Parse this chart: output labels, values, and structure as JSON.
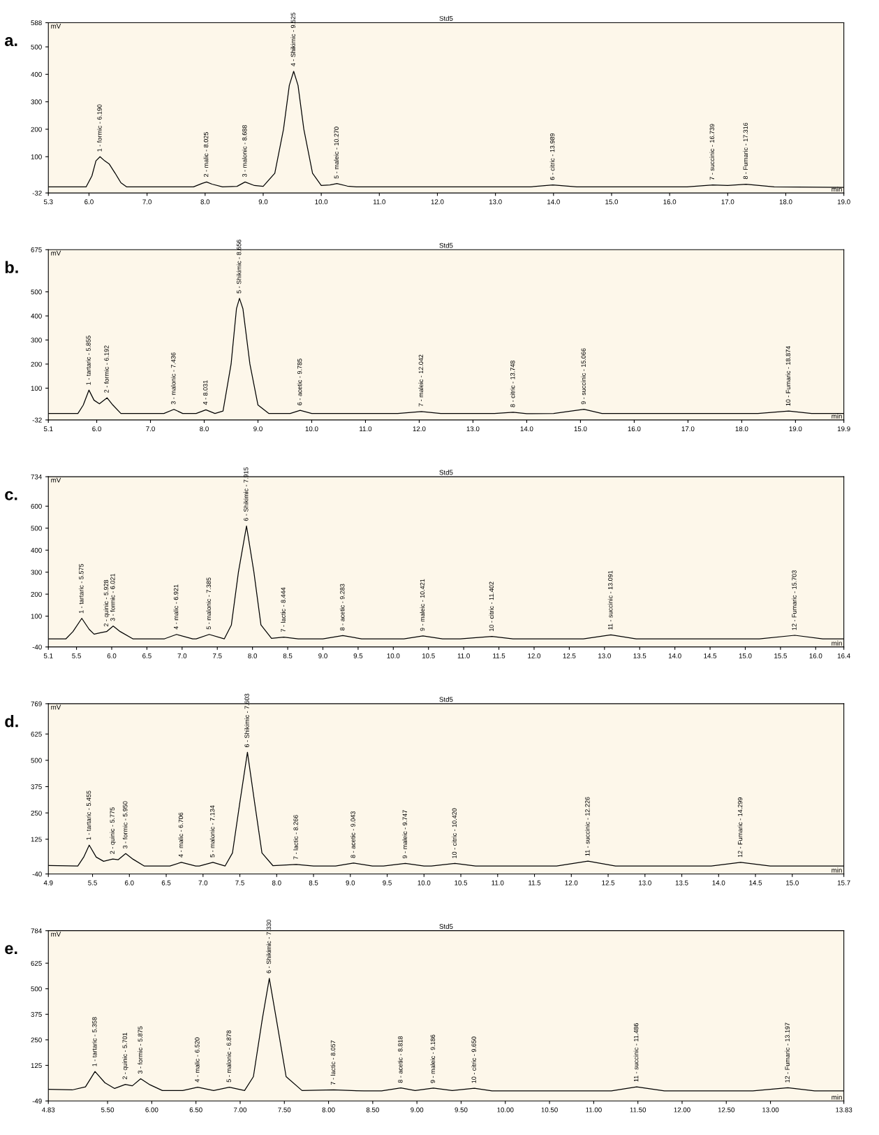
{
  "chart_data": [
    {
      "type": "line",
      "title": "Std5",
      "xlabel": "min",
      "ylabel": "mV",
      "xlim": [
        5.3,
        19.0
      ],
      "ylim": [
        -32,
        588
      ],
      "xticks": [
        5.3,
        {
          "value": 6,
          "label": "6.0"
        },
        {
          "value": 7,
          "label": "7.0"
        },
        {
          "value": 8,
          "label": "8.0"
        },
        {
          "value": 9,
          "label": "9.0"
        },
        {
          "value": 10,
          "label": "10.0"
        },
        {
          "value": 11,
          "label": "11.0"
        },
        {
          "value": 12,
          "label": "12.0"
        },
        {
          "value": 13,
          "label": "13.0"
        },
        {
          "value": 14,
          "label": "14.0"
        },
        {
          "value": 15,
          "label": "15.0"
        },
        {
          "value": 16,
          "label": "16.0"
        },
        {
          "value": 17,
          "label": "17.0"
        },
        {
          "value": 18,
          "label": "18.0"
        },
        {
          "value": 19,
          "label": "19.0"
        }
      ],
      "yticks": [
        -32,
        100,
        200,
        300,
        400,
        500,
        588
      ],
      "grid": false,
      "legend": false,
      "marker": "none",
      "line_style": "solid",
      "x": [
        5.3,
        5.95,
        6.05,
        6.12,
        6.19,
        6.27,
        6.35,
        6.45,
        6.55,
        6.65,
        7.8,
        7.95,
        8.025,
        8.12,
        8.3,
        8.55,
        8.688,
        8.85,
        9.0,
        9.2,
        9.35,
        9.45,
        9.525,
        9.6,
        9.7,
        9.85,
        10.0,
        10.15,
        10.27,
        10.45,
        10.6,
        13.6,
        13.989,
        14.4,
        16.3,
        16.739,
        17.0,
        17.316,
        17.8,
        19.0
      ],
      "series": [
        {
          "color": "#000000",
          "values": [
            -10,
            -10,
            30,
            85,
            100,
            85,
            73,
            40,
            5,
            -10,
            -10,
            3,
            8,
            0,
            -10,
            -8,
            8,
            -5,
            -8,
            40,
            200,
            360,
            411,
            360,
            200,
            40,
            -5,
            -3,
            2,
            -7,
            -10,
            -10,
            -3,
            -10,
            -10,
            -3,
            -5,
            0,
            -10,
            -12
          ]
        }
      ],
      "annotations": [
        "a.",
        {
          "text": "1 - formic - 6.190",
          "x": 6.19,
          "y": 100
        },
        {
          "text": "2 - malic - 8.025",
          "x": 8.025,
          "y": 8
        },
        {
          "text": "3 - malonic - 8.688",
          "x": 8.688,
          "y": 8
        },
        {
          "text": "4 - Shikimic - 9.525",
          "x": 9.525,
          "y": 411
        },
        {
          "text": "5 - maleic - 10.270",
          "x": 10.27,
          "y": 2
        },
        {
          "text": "6 - citric - 13.989",
          "x": 13.989,
          "y": -3
        },
        {
          "text": "7 - succinic - 16.739",
          "x": 16.739,
          "y": -3
        },
        {
          "text": "8 - Fumaric - 17.316",
          "x": 17.316,
          "y": 0
        }
      ]
    },
    {
      "type": "line",
      "title": "Std5",
      "xlabel": "min",
      "ylabel": "mV",
      "xlim": [
        5.1,
        19.9
      ],
      "ylim": [
        -32,
        675
      ],
      "xticks": [
        5.1,
        {
          "value": 6,
          "label": "6.0"
        },
        {
          "value": 7,
          "label": "7.0"
        },
        {
          "value": 8,
          "label": "8.0"
        },
        {
          "value": 9,
          "label": "9.0"
        },
        {
          "value": 10,
          "label": "10.0"
        },
        {
          "value": 11,
          "label": "11.0"
        },
        {
          "value": 12,
          "label": "12.0"
        },
        {
          "value": 13,
          "label": "13.0"
        },
        {
          "value": 14,
          "label": "14.0"
        },
        {
          "value": 15,
          "label": "15.0"
        },
        {
          "value": 16,
          "label": "16.0"
        },
        {
          "value": 17,
          "label": "17.0"
        },
        {
          "value": 18,
          "label": "18.0"
        },
        {
          "value": 19,
          "label": "19.0"
        },
        19.9
      ],
      "yticks": [
        -32,
        100,
        200,
        300,
        400,
        500,
        675
      ],
      "grid": false,
      "legend": false,
      "marker": "none",
      "line_style": "solid",
      "x": [
        5.1,
        5.65,
        5.75,
        5.855,
        5.95,
        6.05,
        6.192,
        6.3,
        6.45,
        7.25,
        7.436,
        7.6,
        7.85,
        8.031,
        8.2,
        8.35,
        8.5,
        8.6,
        8.656,
        8.72,
        8.85,
        9.0,
        9.2,
        9.6,
        9.785,
        10.0,
        11.6,
        12.042,
        12.4,
        13.4,
        13.748,
        14.0,
        14.5,
        15.066,
        15.4,
        18.3,
        18.874,
        19.3,
        19.9
      ],
      "series": [
        {
          "color": "#000000",
          "values": [
            -5,
            -5,
            30,
            92,
            50,
            35,
            60,
            30,
            -5,
            -5,
            12,
            -5,
            -5,
            10,
            -5,
            5,
            200,
            430,
            473,
            430,
            200,
            30,
            -5,
            -5,
            8,
            -5,
            -5,
            3,
            -5,
            -5,
            0,
            -6,
            -5,
            12,
            -5,
            -5,
            5,
            -5,
            -5
          ]
        }
      ],
      "annotations": [
        "b.",
        {
          "text": "1 - tartaric - 5.855",
          "x": 5.855,
          "y": 92
        },
        {
          "text": "2 - formic - 6.192",
          "x": 6.192,
          "y": 60
        },
        {
          "text": "3 - malonic - 7.436",
          "x": 7.436,
          "y": 12
        },
        {
          "text": "4 - 8.031",
          "x": 8.031,
          "y": 10
        },
        {
          "text": "5 - Shikimic - 8.656",
          "x": 8.656,
          "y": 473
        },
        {
          "text": "6 - acetic - 9.785",
          "x": 9.785,
          "y": 8
        },
        {
          "text": "7 - maleic - 12.042",
          "x": 12.042,
          "y": 3
        },
        {
          "text": "8 - citric - 13.748",
          "x": 13.748,
          "y": 0
        },
        {
          "text": "9 - succinic - 15.066",
          "x": 15.066,
          "y": 12
        },
        {
          "text": "10 - Fumaric - 18.874",
          "x": 18.874,
          "y": 5
        }
      ]
    },
    {
      "type": "line",
      "title": "Std5",
      "xlabel": "min",
      "ylabel": "mV",
      "xlim": [
        5.1,
        16.4
      ],
      "ylim": [
        -40,
        734
      ],
      "xticks": [
        5.1,
        5.5,
        {
          "value": 6,
          "label": "6.0"
        },
        6.5,
        {
          "value": 7,
          "label": "7.0"
        },
        7.5,
        {
          "value": 8,
          "label": "8.0"
        },
        8.5,
        {
          "value": 9,
          "label": "9.0"
        },
        9.5,
        {
          "value": 10,
          "label": "10.0"
        },
        10.5,
        {
          "value": 11,
          "label": "11.0"
        },
        11.5,
        {
          "value": 12,
          "label": "12.0"
        },
        12.5,
        {
          "value": 13,
          "label": "13.0"
        },
        13.5,
        {
          "value": 14,
          "label": "14.0"
        },
        14.5,
        {
          "value": 15,
          "label": "15.0"
        },
        15.5,
        {
          "value": 16,
          "label": "16.0"
        },
        16.4
      ],
      "yticks": [
        -40,
        100,
        200,
        300,
        400,
        500,
        600,
        734
      ],
      "grid": false,
      "legend": false,
      "marker": "none",
      "line_style": "solid",
      "x": [
        5.1,
        5.35,
        5.45,
        5.575,
        5.68,
        5.75,
        5.85,
        5.928,
        6.021,
        6.12,
        6.3,
        6.75,
        6.921,
        7.15,
        7.2,
        7.385,
        7.6,
        7.7,
        7.8,
        7.915,
        8.02,
        8.12,
        8.27,
        8.444,
        8.65,
        9.0,
        9.283,
        9.55,
        10.15,
        10.421,
        10.7,
        10.95,
        11.402,
        11.7,
        12.7,
        13.091,
        13.45,
        15.2,
        15.703,
        16.1,
        16.4
      ],
      "series": [
        {
          "color": "#000000",
          "values": [
            -3,
            -3,
            30,
            90,
            40,
            18,
            25,
            30,
            55,
            30,
            -3,
            -3,
            17,
            -3,
            -3,
            17,
            -3,
            60,
            300,
            510,
            300,
            60,
            -1,
            5,
            -3,
            -3,
            12,
            -3,
            -3,
            10,
            -3,
            -3,
            8,
            -3,
            -3,
            15,
            -3,
            -3,
            13,
            -3,
            -3
          ]
        }
      ],
      "annotations": [
        "c.",
        {
          "text": "1 - tartaric - 5.575",
          "x": 5.575,
          "y": 90
        },
        {
          "text": "2 - quinic - 5.928",
          "x": 5.928,
          "y": 30
        },
        {
          "text": "3 - formic - 6.021",
          "x": 6.021,
          "y": 55
        },
        {
          "text": "4 - malic - 6.921",
          "x": 6.921,
          "y": 17
        },
        {
          "text": "5 - malonic - 7.385",
          "x": 7.385,
          "y": 17
        },
        {
          "text": "6 - Shikimic - 7.915",
          "x": 7.915,
          "y": 510
        },
        {
          "text": "7 - lactic - 8.444",
          "x": 8.444,
          "y": 5
        },
        {
          "text": "8 - acetic - 9.283",
          "x": 9.283,
          "y": 12
        },
        {
          "text": "9 - maleic - 10.421",
          "x": 10.421,
          "y": 10
        },
        {
          "text": "10 - citric - 11.402",
          "x": 11.402,
          "y": 8
        },
        {
          "text": "11 - succinic - 13.091",
          "x": 13.091,
          "y": 15
        },
        {
          "text": "12 - Fumaric - 15.703",
          "x": 15.703,
          "y": 13
        }
      ]
    },
    {
      "type": "line",
      "title": "Std5",
      "xlabel": "min",
      "ylabel": "mV",
      "xlim": [
        4.9,
        15.7
      ],
      "ylim": [
        -40,
        769
      ],
      "xticks": [
        4.9,
        5.5,
        {
          "value": 6,
          "label": "6.0"
        },
        6.5,
        {
          "value": 7,
          "label": "7.0"
        },
        7.5,
        {
          "value": 8,
          "label": "8.0"
        },
        8.5,
        {
          "value": 9,
          "label": "9.0"
        },
        9.5,
        {
          "value": 10,
          "label": "10.0"
        },
        10.5,
        {
          "value": 11,
          "label": "11.0"
        },
        11.5,
        {
          "value": 12,
          "label": "12.0"
        },
        12.5,
        {
          "value": 13,
          "label": "13.0"
        },
        13.5,
        {
          "value": 14,
          "label": "14.0"
        },
        14.5,
        {
          "value": 15,
          "label": "15.0"
        },
        15.7
      ],
      "yticks": [
        -40,
        125,
        250,
        375,
        500,
        625,
        769
      ],
      "grid": false,
      "legend": false,
      "marker": "none",
      "line_style": "solid",
      "x": [
        4.9,
        5.3,
        5.38,
        5.455,
        5.55,
        5.65,
        5.775,
        5.85,
        5.95,
        6.05,
        6.2,
        6.55,
        6.706,
        6.9,
        6.95,
        7.134,
        7.3,
        7.4,
        7.5,
        7.603,
        7.7,
        7.8,
        7.95,
        8.266,
        8.5,
        8.8,
        9.043,
        9.3,
        9.45,
        9.747,
        10.0,
        10.1,
        10.42,
        10.7,
        11.8,
        12.226,
        12.6,
        13.9,
        14.299,
        14.7,
        15.7
      ],
      "series": [
        {
          "color": "#000000",
          "values": [
            0,
            -2,
            40,
            97,
            40,
            20,
            31,
            28,
            57,
            30,
            -2,
            -2,
            15,
            -2,
            -2,
            15,
            -2,
            60,
            300,
            538,
            300,
            60,
            -1,
            5,
            -2,
            -2,
            12,
            -2,
            -2,
            10,
            -2,
            -2,
            10,
            -2,
            -2,
            21,
            -2,
            -2,
            15,
            -2,
            -2
          ]
        }
      ],
      "annotations": [
        "d.",
        {
          "text": "1 - tartaric - 5.455",
          "x": 5.455,
          "y": 97
        },
        {
          "text": "2 - quinic - 5.775",
          "x": 5.775,
          "y": 31
        },
        {
          "text": "3 - formic - 5.950",
          "x": 5.95,
          "y": 57
        },
        {
          "text": "4 - malic - 6.706",
          "x": 6.706,
          "y": 15
        },
        {
          "text": "5 - malonic - 7.134",
          "x": 7.134,
          "y": 15
        },
        {
          "text": "6 - Shikimic - 7.603",
          "x": 7.603,
          "y": 538
        },
        {
          "text": "7 - lactic - 8.266",
          "x": 8.266,
          "y": 5
        },
        {
          "text": "8 - acetic - 9.043",
          "x": 9.043,
          "y": 12
        },
        {
          "text": "9 - maleic - 9.747",
          "x": 9.747,
          "y": 10
        },
        {
          "text": "10 - citric - 10.420",
          "x": 10.42,
          "y": 10
        },
        {
          "text": "11 - succinic - 12.226",
          "x": 12.226,
          "y": 21
        },
        {
          "text": "12 - Fumaric - 14.299",
          "x": 14.299,
          "y": 15
        }
      ]
    },
    {
      "type": "line",
      "title": "Std5",
      "xlabel": "min",
      "ylabel": "mV",
      "xlim": [
        4.83,
        13.83
      ],
      "ylim": [
        -49,
        784
      ],
      "xticks": [
        4.83,
        {
          "value": 5.5,
          "label": "5.50"
        },
        {
          "value": 6,
          "label": "6.00"
        },
        {
          "value": 6.5,
          "label": "6.50"
        },
        {
          "value": 7,
          "label": "7.00"
        },
        {
          "value": 7.5,
          "label": "7.50"
        },
        {
          "value": 8,
          "label": "8.00"
        },
        {
          "value": 8.5,
          "label": "8.50"
        },
        {
          "value": 9,
          "label": "9.00"
        },
        {
          "value": 9.5,
          "label": "9.50"
        },
        {
          "value": 10,
          "label": "10.00"
        },
        {
          "value": 10.5,
          "label": "10.50"
        },
        {
          "value": 11,
          "label": "11.00"
        },
        {
          "value": 11.5,
          "label": "11.50"
        },
        {
          "value": 12,
          "label": "12.00"
        },
        {
          "value": 12.5,
          "label": "12.50"
        },
        {
          "value": 13,
          "label": "13.00"
        },
        13.83
      ],
      "yticks": [
        -49,
        125,
        250,
        375,
        500,
        625,
        784
      ],
      "grid": false,
      "legend": false,
      "marker": "none",
      "line_style": "solid",
      "x": [
        4.83,
        5.1,
        5.25,
        5.358,
        5.47,
        5.58,
        5.701,
        5.78,
        5.875,
        5.98,
        6.12,
        6.35,
        6.52,
        6.7,
        6.878,
        7.05,
        7.15,
        7.25,
        7.33,
        7.41,
        7.52,
        7.7,
        8.057,
        8.4,
        8.6,
        8.818,
        8.98,
        9.186,
        9.4,
        9.65,
        9.85,
        11.2,
        11.486,
        11.8,
        12.8,
        13.197,
        13.5,
        13.83
      ],
      "series": [
        {
          "color": "#000000",
          "values": [
            8,
            5,
            20,
            95,
            40,
            12,
            32,
            25,
            60,
            30,
            2,
            2,
            18,
            2,
            18,
            2,
            70,
            350,
            551,
            350,
            70,
            2,
            5,
            0,
            0,
            15,
            2,
            14,
            2,
            13,
            0,
            0,
            20,
            0,
            0,
            16,
            0,
            0
          ]
        }
      ],
      "annotations": [
        "e.",
        {
          "text": "1 - tartaric - 5.358",
          "x": 5.358,
          "y": 95
        },
        {
          "text": "2 - quinic - 5.701",
          "x": 5.701,
          "y": 32
        },
        {
          "text": "3 - formic - 5.875",
          "x": 5.875,
          "y": 60
        },
        {
          "text": "4 - malic - 6.520",
          "x": 6.52,
          "y": 18
        },
        {
          "text": "5 - malonic - 6.878",
          "x": 6.878,
          "y": 18
        },
        {
          "text": "6 - Shikimic - 7.330",
          "x": 7.33,
          "y": 551
        },
        {
          "text": "7 - lactic - 8.057",
          "x": 8.057,
          "y": 5
        },
        {
          "text": "8 - acetic - 8.818",
          "x": 8.818,
          "y": 15
        },
        {
          "text": "9 - maleic - 9.186",
          "x": 9.186,
          "y": 14
        },
        {
          "text": "10 - citric - 9.650",
          "x": 9.65,
          "y": 13
        },
        {
          "text": "11 - succinic - 11.486",
          "x": 11.486,
          "y": 20
        },
        {
          "text": "12 - Fumaric - 13.197",
          "x": 13.197,
          "y": 16
        }
      ]
    }
  ]
}
